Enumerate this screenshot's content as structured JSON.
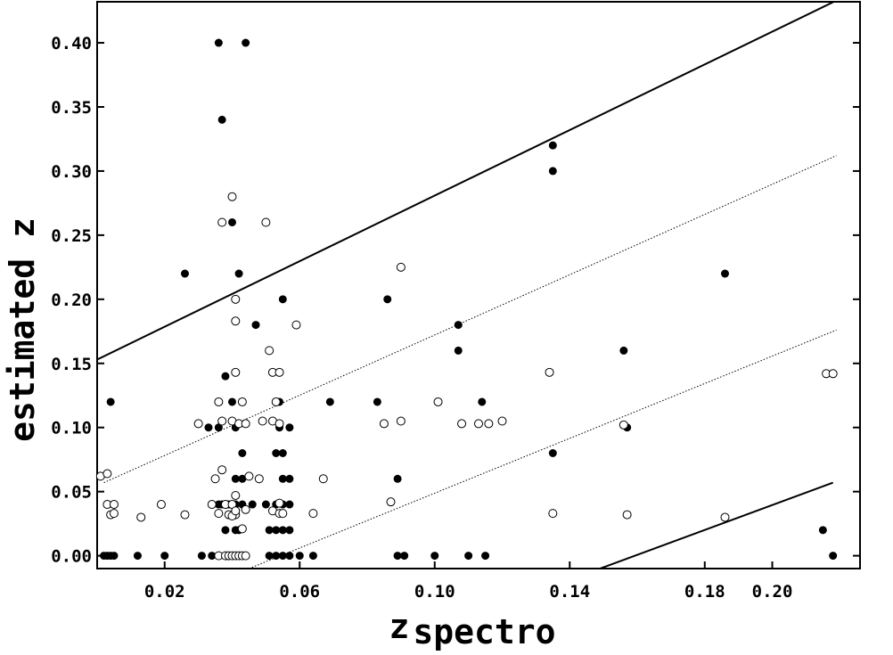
{
  "chart_data": {
    "type": "scatter",
    "xlabel_main": "z",
    "xlabel_sub": "spectro",
    "ylabel": "estimated z",
    "xlim": [
      0.0,
      0.226
    ],
    "ylim": [
      -0.01,
      0.432
    ],
    "x_ticks": [
      0.02,
      0.06,
      0.1,
      0.14,
      0.18,
      0.2
    ],
    "x_tick_labels": [
      "0.02",
      "0.06",
      "0.10",
      "0.14",
      "0.18",
      "0.20"
    ],
    "y_ticks": [
      0.0,
      0.05,
      0.1,
      0.15,
      0.2,
      0.25,
      0.3,
      0.35,
      0.4
    ],
    "y_tick_labels": [
      "0.00",
      "0.05",
      "0.10",
      "0.15",
      "0.20",
      "0.25",
      "0.30",
      "0.35",
      "0.40"
    ],
    "grid": false,
    "lines": [
      {
        "style": "solid",
        "x": [
          0.0,
          0.219
        ],
        "y": [
          0.153,
          0.433
        ]
      },
      {
        "style": "dotted",
        "x": [
          0.002,
          0.219
        ],
        "y": [
          0.057,
          0.312
        ]
      },
      {
        "style": "dotted",
        "x": [
          0.045,
          0.219
        ],
        "y": [
          -0.01,
          0.176
        ]
      },
      {
        "style": "solid",
        "x": [
          0.149,
          0.218
        ],
        "y": [
          -0.01,
          0.057
        ]
      }
    ],
    "series": [
      {
        "marker": "filled",
        "points": [
          [
            0.036,
            0.4
          ],
          [
            0.044,
            0.4
          ],
          [
            0.037,
            0.34
          ],
          [
            0.135,
            0.32
          ],
          [
            0.135,
            0.3
          ],
          [
            0.04,
            0.26
          ],
          [
            0.026,
            0.22
          ],
          [
            0.042,
            0.22
          ],
          [
            0.186,
            0.22
          ],
          [
            0.055,
            0.2
          ],
          [
            0.086,
            0.2
          ],
          [
            0.047,
            0.18
          ],
          [
            0.107,
            0.18
          ],
          [
            0.107,
            0.16
          ],
          [
            0.156,
            0.16
          ],
          [
            0.038,
            0.14
          ],
          [
            0.004,
            0.12
          ],
          [
            0.036,
            0.12
          ],
          [
            0.04,
            0.12
          ],
          [
            0.054,
            0.12
          ],
          [
            0.069,
            0.12
          ],
          [
            0.083,
            0.12
          ],
          [
            0.114,
            0.12
          ],
          [
            0.033,
            0.1
          ],
          [
            0.036,
            0.1
          ],
          [
            0.041,
            0.1
          ],
          [
            0.054,
            0.1
          ],
          [
            0.057,
            0.1
          ],
          [
            0.157,
            0.1
          ],
          [
            0.043,
            0.08
          ],
          [
            0.053,
            0.08
          ],
          [
            0.055,
            0.08
          ],
          [
            0.135,
            0.08
          ],
          [
            0.041,
            0.06
          ],
          [
            0.043,
            0.06
          ],
          [
            0.055,
            0.06
          ],
          [
            0.057,
            0.06
          ],
          [
            0.089,
            0.06
          ],
          [
            0.034,
            0.04
          ],
          [
            0.036,
            0.04
          ],
          [
            0.037,
            0.04
          ],
          [
            0.039,
            0.04
          ],
          [
            0.041,
            0.04
          ],
          [
            0.043,
            0.04
          ],
          [
            0.046,
            0.04
          ],
          [
            0.05,
            0.04
          ],
          [
            0.053,
            0.04
          ],
          [
            0.055,
            0.04
          ],
          [
            0.057,
            0.04
          ],
          [
            0.038,
            0.02
          ],
          [
            0.041,
            0.02
          ],
          [
            0.042,
            0.02
          ],
          [
            0.051,
            0.02
          ],
          [
            0.053,
            0.02
          ],
          [
            0.055,
            0.02
          ],
          [
            0.057,
            0.02
          ],
          [
            0.215,
            0.02
          ],
          [
            0.002,
            0.0
          ],
          [
            0.003,
            0.0
          ],
          [
            0.004,
            0.0
          ],
          [
            0.005,
            0.0
          ],
          [
            0.012,
            0.0
          ],
          [
            0.02,
            0.0
          ],
          [
            0.031,
            0.0
          ],
          [
            0.034,
            0.0
          ],
          [
            0.041,
            0.0
          ],
          [
            0.043,
            0.0
          ],
          [
            0.051,
            0.0
          ],
          [
            0.053,
            0.0
          ],
          [
            0.055,
            0.0
          ],
          [
            0.057,
            0.0
          ],
          [
            0.06,
            0.0
          ],
          [
            0.064,
            0.0
          ],
          [
            0.089,
            0.0
          ],
          [
            0.091,
            0.0
          ],
          [
            0.1,
            0.0
          ],
          [
            0.11,
            0.0
          ],
          [
            0.115,
            0.0
          ],
          [
            0.218,
            0.0
          ]
        ]
      },
      {
        "marker": "open",
        "points": [
          [
            0.04,
            0.28
          ],
          [
            0.037,
            0.26
          ],
          [
            0.05,
            0.26
          ],
          [
            0.09,
            0.225
          ],
          [
            0.041,
            0.2
          ],
          [
            0.041,
            0.183
          ],
          [
            0.059,
            0.18
          ],
          [
            0.051,
            0.16
          ],
          [
            0.041,
            0.143
          ],
          [
            0.052,
            0.143
          ],
          [
            0.054,
            0.143
          ],
          [
            0.134,
            0.143
          ],
          [
            0.216,
            0.142
          ],
          [
            0.218,
            0.142
          ],
          [
            0.036,
            0.12
          ],
          [
            0.043,
            0.12
          ],
          [
            0.053,
            0.12
          ],
          [
            0.101,
            0.12
          ],
          [
            0.03,
            0.103
          ],
          [
            0.037,
            0.105
          ],
          [
            0.04,
            0.105
          ],
          [
            0.042,
            0.103
          ],
          [
            0.044,
            0.103
          ],
          [
            0.049,
            0.105
          ],
          [
            0.052,
            0.105
          ],
          [
            0.054,
            0.103
          ],
          [
            0.085,
            0.103
          ],
          [
            0.09,
            0.105
          ],
          [
            0.108,
            0.103
          ],
          [
            0.113,
            0.103
          ],
          [
            0.116,
            0.103
          ],
          [
            0.12,
            0.105
          ],
          [
            0.156,
            0.102
          ],
          [
            0.037,
            0.067
          ],
          [
            0.001,
            0.062
          ],
          [
            0.003,
            0.064
          ],
          [
            0.035,
            0.06
          ],
          [
            0.045,
            0.062
          ],
          [
            0.048,
            0.06
          ],
          [
            0.067,
            0.06
          ],
          [
            0.041,
            0.047
          ],
          [
            0.019,
            0.04
          ],
          [
            0.003,
            0.04
          ],
          [
            0.005,
            0.04
          ],
          [
            0.034,
            0.04
          ],
          [
            0.038,
            0.04
          ],
          [
            0.04,
            0.04
          ],
          [
            0.041,
            0.032
          ],
          [
            0.054,
            0.041
          ],
          [
            0.087,
            0.042
          ],
          [
            0.004,
            0.032
          ],
          [
            0.005,
            0.033
          ],
          [
            0.013,
            0.03
          ],
          [
            0.026,
            0.032
          ],
          [
            0.036,
            0.033
          ],
          [
            0.039,
            0.032
          ],
          [
            0.04,
            0.031
          ],
          [
            0.041,
            0.035
          ],
          [
            0.044,
            0.036
          ],
          [
            0.052,
            0.035
          ],
          [
            0.054,
            0.033
          ],
          [
            0.055,
            0.033
          ],
          [
            0.064,
            0.033
          ],
          [
            0.135,
            0.033
          ],
          [
            0.157,
            0.032
          ],
          [
            0.186,
            0.03
          ],
          [
            0.043,
            0.021
          ],
          [
            0.036,
            0.0
          ],
          [
            0.038,
            0.0
          ],
          [
            0.039,
            0.0
          ],
          [
            0.04,
            0.0
          ],
          [
            0.041,
            0.0
          ],
          [
            0.042,
            0.0
          ],
          [
            0.043,
            0.0
          ],
          [
            0.044,
            0.0
          ]
        ]
      }
    ]
  }
}
